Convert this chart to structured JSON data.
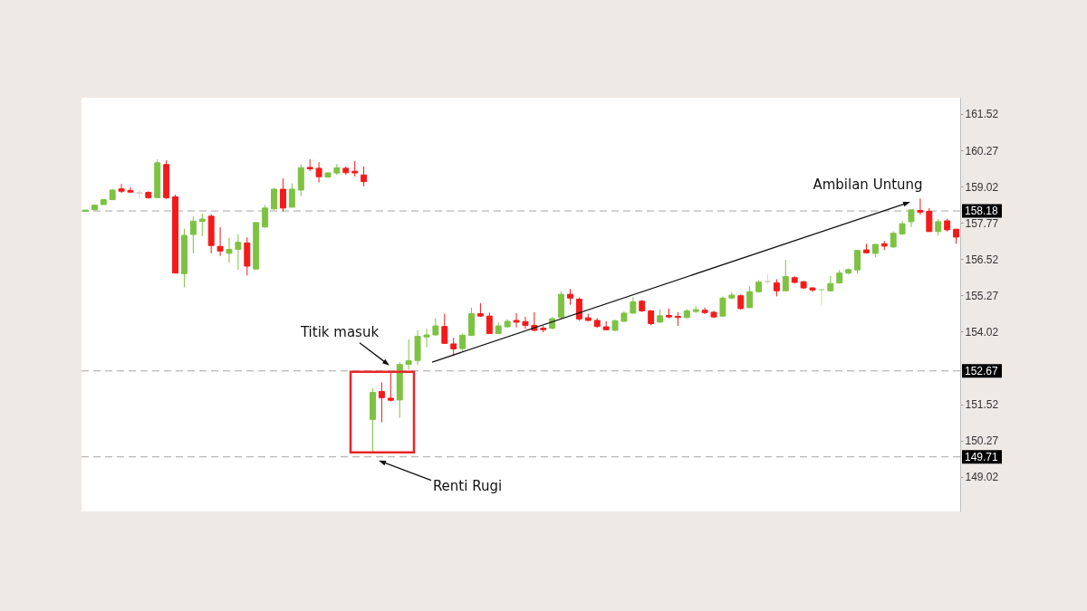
{
  "chart_data": {
    "type": "candlestick",
    "categories": [
      null,
      null,
      null,
      null,
      null,
      null,
      null,
      null,
      null,
      null,
      null,
      null,
      null,
      null,
      null,
      null,
      null,
      null,
      null,
      null,
      null,
      null,
      null,
      null,
      null,
      null,
      null,
      null,
      null,
      null,
      null,
      null,
      null,
      null,
      null,
      null,
      null,
      null,
      null,
      null,
      null,
      null,
      null,
      null,
      null,
      null,
      null,
      null,
      null,
      null,
      null,
      null,
      null,
      null,
      null,
      null,
      null,
      null,
      null,
      null,
      null,
      null,
      null,
      null,
      null,
      null,
      null,
      null,
      null,
      null,
      null,
      null,
      null,
      null,
      null,
      null,
      null,
      null,
      null,
      null,
      null,
      null,
      null,
      null,
      null,
      null,
      null,
      null,
      null,
      null,
      null,
      null,
      null,
      null,
      null,
      null,
      null,
      null
    ],
    "ohlc": [
      [
        158.17,
        158.21,
        158.17,
        158.21
      ],
      [
        158.22,
        158.38,
        158.22,
        158.38
      ],
      [
        158.4,
        158.57,
        158.4,
        158.57
      ],
      [
        158.57,
        158.94,
        158.57,
        158.9
      ],
      [
        158.94,
        159.11,
        158.8,
        158.86
      ],
      [
        158.89,
        159.0,
        158.8,
        158.83
      ],
      [
        158.79,
        158.9,
        158.64,
        158.81
      ],
      [
        158.82,
        158.86,
        158.6,
        158.64
      ],
      [
        158.64,
        159.96,
        158.64,
        159.84
      ],
      [
        159.78,
        159.92,
        158.59,
        158.64
      ],
      [
        158.67,
        158.74,
        156.04,
        156.04
      ],
      [
        156.02,
        157.57,
        155.55,
        157.34
      ],
      [
        157.37,
        157.99,
        156.72,
        157.83
      ],
      [
        157.82,
        158.09,
        157.31,
        157.9
      ],
      [
        158.0,
        158.07,
        156.72,
        156.99
      ],
      [
        156.96,
        157.62,
        156.63,
        156.8
      ],
      [
        156.72,
        157.26,
        156.4,
        156.86
      ],
      [
        156.86,
        157.38,
        156.15,
        157.1
      ],
      [
        157.08,
        157.27,
        155.96,
        156.28
      ],
      [
        156.18,
        157.78,
        156.18,
        157.78
      ],
      [
        157.63,
        158.38,
        157.6,
        158.28
      ],
      [
        158.25,
        158.97,
        158.22,
        158.93
      ],
      [
        158.93,
        159.3,
        158.17,
        158.28
      ],
      [
        158.31,
        159.13,
        158.31,
        158.93
      ],
      [
        158.9,
        159.78,
        158.69,
        159.67
      ],
      [
        159.68,
        159.96,
        159.55,
        159.63
      ],
      [
        159.65,
        159.86,
        159.16,
        159.36
      ],
      [
        159.35,
        159.52,
        159.32,
        159.49
      ],
      [
        159.49,
        159.8,
        159.42,
        159.67
      ],
      [
        159.65,
        159.71,
        159.42,
        159.5
      ],
      [
        159.55,
        159.9,
        159.37,
        159.49
      ],
      [
        159.42,
        159.71,
        159.03,
        159.19
      ],
      [
        151.0,
        152.07,
        149.86,
        151.93
      ],
      [
        151.96,
        152.28,
        150.9,
        151.75
      ],
      [
        151.73,
        152.66,
        151.62,
        151.66
      ],
      [
        151.67,
        152.97,
        151.05,
        152.89
      ],
      [
        152.9,
        153.75,
        152.71,
        153.02
      ],
      [
        153.03,
        154.07,
        152.87,
        153.86
      ],
      [
        153.84,
        154.12,
        153.49,
        153.91
      ],
      [
        153.91,
        154.48,
        153.89,
        154.22
      ],
      [
        154.2,
        154.64,
        153.6,
        153.62
      ],
      [
        153.6,
        153.81,
        153.18,
        153.43
      ],
      [
        153.44,
        153.96,
        153.31,
        153.9
      ],
      [
        153.89,
        154.85,
        153.89,
        154.64
      ],
      [
        154.64,
        155.0,
        154.53,
        154.56
      ],
      [
        154.56,
        154.68,
        153.96,
        153.96
      ],
      [
        153.96,
        154.34,
        153.96,
        154.22
      ],
      [
        154.19,
        154.45,
        154.16,
        154.38
      ],
      [
        154.41,
        154.66,
        154.17,
        154.35
      ],
      [
        154.37,
        154.53,
        154.12,
        154.24
      ],
      [
        154.24,
        154.69,
        154.03,
        154.07
      ],
      [
        154.14,
        154.22,
        154.0,
        154.09
      ],
      [
        154.14,
        154.53,
        154.09,
        154.47
      ],
      [
        154.51,
        155.42,
        154.47,
        155.31
      ],
      [
        155.31,
        155.49,
        154.95,
        155.18
      ],
      [
        155.14,
        155.2,
        154.4,
        154.46
      ],
      [
        154.5,
        154.64,
        154.38,
        154.41
      ],
      [
        154.41,
        154.49,
        154.15,
        154.2
      ],
      [
        154.19,
        154.38,
        154.07,
        154.09
      ],
      [
        154.07,
        154.43,
        154.04,
        154.4
      ],
      [
        154.38,
        154.72,
        154.35,
        154.66
      ],
      [
        154.66,
        155.21,
        154.64,
        155.05
      ],
      [
        155.07,
        155.12,
        154.7,
        154.74
      ],
      [
        154.74,
        154.77,
        154.24,
        154.3
      ],
      [
        154.35,
        154.79,
        154.33,
        154.57
      ],
      [
        154.58,
        154.82,
        154.48,
        154.53
      ],
      [
        154.55,
        154.69,
        154.22,
        154.51
      ],
      [
        154.51,
        154.8,
        154.48,
        154.74
      ],
      [
        154.72,
        154.9,
        154.66,
        154.78
      ],
      [
        154.76,
        154.85,
        154.63,
        154.68
      ],
      [
        154.69,
        154.74,
        154.49,
        154.53
      ],
      [
        154.56,
        155.24,
        154.54,
        155.18
      ],
      [
        155.18,
        155.39,
        155.14,
        155.28
      ],
      [
        155.26,
        155.3,
        154.78,
        154.82
      ],
      [
        154.85,
        155.59,
        154.85,
        155.4
      ],
      [
        155.4,
        155.8,
        155.37,
        155.73
      ],
      [
        155.74,
        155.99,
        155.66,
        155.76
      ],
      [
        155.7,
        155.83,
        155.24,
        155.43
      ],
      [
        155.43,
        156.49,
        155.43,
        155.92
      ],
      [
        155.88,
        155.94,
        155.68,
        155.72
      ],
      [
        155.74,
        155.78,
        155.49,
        155.53
      ],
      [
        155.53,
        155.55,
        155.39,
        155.46
      ],
      [
        155.46,
        155.49,
        154.95,
        155.48
      ],
      [
        155.43,
        155.94,
        155.42,
        155.68
      ],
      [
        155.7,
        156.15,
        155.68,
        156.04
      ],
      [
        156.04,
        156.2,
        156.0,
        156.16
      ],
      [
        156.15,
        156.84,
        156.02,
        156.82
      ],
      [
        156.84,
        157.05,
        156.72,
        156.74
      ],
      [
        156.72,
        157.03,
        156.58,
        157.03
      ],
      [
        157.05,
        157.15,
        156.84,
        156.97
      ],
      [
        156.94,
        157.48,
        156.9,
        157.41
      ],
      [
        157.39,
        157.83,
        157.36,
        157.74
      ],
      [
        157.81,
        158.22,
        157.63,
        158.22
      ],
      [
        158.2,
        158.61,
        158.05,
        158.14
      ],
      [
        158.17,
        158.28,
        157.47,
        157.47
      ],
      [
        157.47,
        157.91,
        157.34,
        157.81
      ],
      [
        157.84,
        157.91,
        157.47,
        157.53
      ],
      [
        157.55,
        157.57,
        157.05,
        157.28
      ]
    ],
    "colors": [
      "#7dc242",
      "#7dc242",
      "#7dc242",
      "#7dc242",
      "#f51a1a",
      "#f51a1a",
      "#dcc8c8",
      "#f51a1a",
      "#7dc242",
      "#f51a1a",
      "#f51a1a",
      "#7dc242",
      "#7dc242",
      "#7dc242",
      "#f51a1a",
      "#f51a1a",
      "#7dc242",
      "#7dc242",
      "#f51a1a",
      "#7dc242",
      "#7dc242",
      "#7dc242",
      "#f51a1a",
      "#7dc242",
      "#7dc242",
      "#f51a1a",
      "#f51a1a",
      "#7dc242",
      "#7dc242",
      "#f51a1a",
      "#f51a1a",
      "#f51a1a",
      "#7dc242",
      "#f51a1a",
      "#f51a1a",
      "#7dc242",
      "#7dc242",
      "#7dc242",
      "#7dc242",
      "#7dc242",
      "#f51a1a",
      "#f51a1a",
      "#7dc242",
      "#7dc242",
      "#f51a1a",
      "#f51a1a",
      "#7dc242",
      "#7dc242",
      "#f51a1a",
      "#f51a1a",
      "#f51a1a",
      "#f51a1a",
      "#7dc242",
      "#7dc242",
      "#f51a1a",
      "#f51a1a",
      "#f51a1a",
      "#f51a1a",
      "#f51a1a",
      "#7dc242",
      "#7dc242",
      "#7dc242",
      "#f51a1a",
      "#f51a1a",
      "#7dc242",
      "#f51a1a",
      "#f51a1a",
      "#7dc242",
      "#7dc242",
      "#f51a1a",
      "#f51a1a",
      "#7dc242",
      "#7dc242",
      "#f51a1a",
      "#7dc242",
      "#7dc242",
      "#d4d4d4",
      "#f51a1a",
      "#7dc242",
      "#f51a1a",
      "#f51a1a",
      "#f51a1a",
      "#bfe0a2",
      "#7dc242",
      "#7dc242",
      "#7dc242",
      "#7dc242",
      "#f51a1a",
      "#7dc242",
      "#f51a1a",
      "#7dc242",
      "#7dc242",
      "#7dc242",
      "#f51a1a",
      "#f51a1a",
      "#7dc242",
      "#f51a1a",
      "#f51a1a"
    ],
    "ylim": [
      147.83,
      162.08
    ],
    "yticks": [
      149.02,
      150.27,
      151.52,
      154.02,
      155.27,
      156.52,
      157.77,
      159.02,
      160.27,
      161.52
    ],
    "tick_labels": "y",
    "ref_lines": [
      {
        "axis": "y",
        "value": 158.18,
        "label": "158.18",
        "color": "#a6a6a6",
        "line_style": "dashed"
      },
      {
        "axis": "y",
        "value": 152.67,
        "label": "152.67",
        "color": "#a6a6a6",
        "line_style": "dashed"
      },
      {
        "axis": "y",
        "value": 149.71,
        "label": "149.71",
        "color": "#a6a6a6",
        "line_style": "dashed"
      }
    ],
    "annotations": [
      {
        "text": "Titik masuk",
        "y": 152.67
      },
      {
        "text": "Renti Rugi",
        "y": 149.71
      },
      {
        "text": "Ambilan Untung",
        "y": 158.18
      }
    ]
  }
}
